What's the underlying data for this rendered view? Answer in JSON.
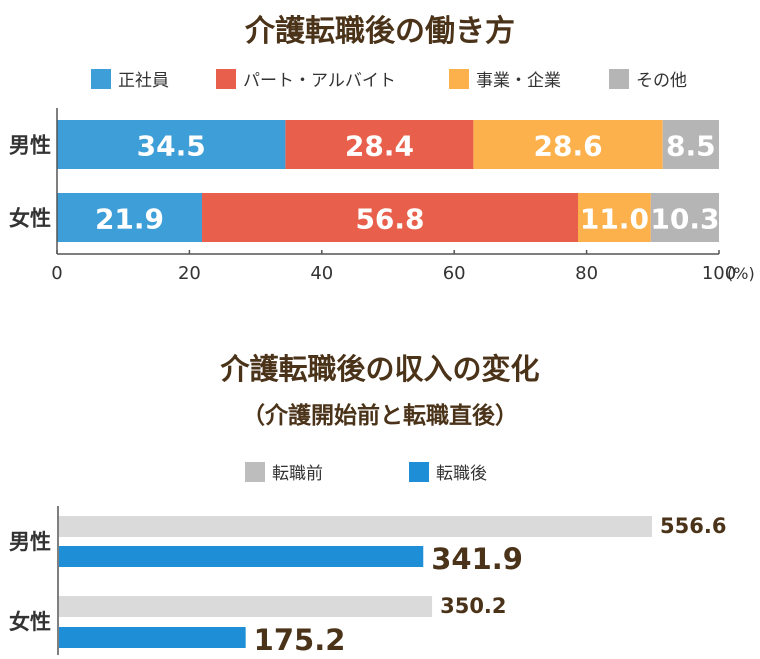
{
  "chart_data": [
    {
      "type": "bar",
      "orientation": "horizontal",
      "stacked": true,
      "title": "介護転職後の働き方",
      "categories": [
        "男性",
        "女性"
      ],
      "series": [
        {
          "name": "正社員",
          "color": "#3d9ed8",
          "values": [
            34.5,
            21.9
          ]
        },
        {
          "name": "パート・アルバイト",
          "color": "#e8604b",
          "values": [
            28.4,
            56.8
          ]
        },
        {
          "name": "事業・企業",
          "color": "#fdb14d",
          "values": [
            28.6,
            11.0
          ]
        },
        {
          "name": "その他",
          "color": "#b5b5b5",
          "values": [
            8.5,
            10.3
          ]
        }
      ],
      "xlim": [
        0,
        100
      ],
      "xticks": [
        "0",
        "20",
        "40",
        "60",
        "80",
        "100"
      ],
      "xunit": "(%)",
      "legend": "top"
    },
    {
      "type": "bar",
      "orientation": "horizontal",
      "title": "介護転職後の収入の変化",
      "subtitle": "（介護開始前と転職直後）",
      "categories": [
        "男性",
        "女性"
      ],
      "series": [
        {
          "name": "転職前",
          "color": "#dadada",
          "values": [
            556.6,
            350.2
          ]
        },
        {
          "name": "転職後",
          "color": "#1e8fd6",
          "values": [
            341.9,
            175.2
          ]
        }
      ],
      "legend": "top"
    }
  ]
}
